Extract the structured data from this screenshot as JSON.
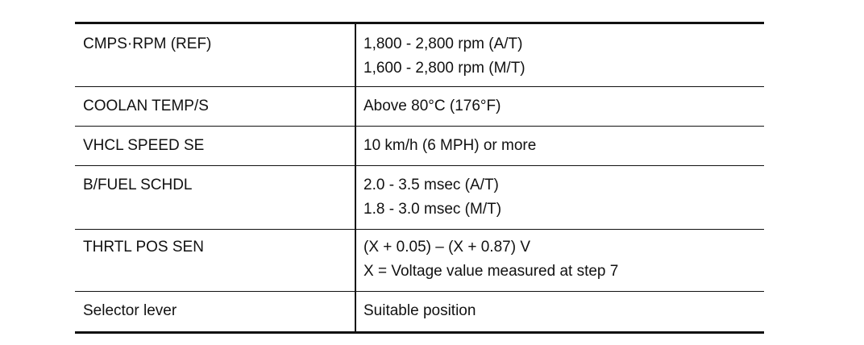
{
  "table": {
    "rows": [
      [
        "CMPS·RPM (REF)",
        [
          "1,800 - 2,800 rpm (A/T)",
          "1,600 - 2,800 rpm (M/T)"
        ]
      ],
      [
        "COOLAN TEMP/S",
        [
          "Above 80°C (176°F)"
        ]
      ],
      [
        "VHCL SPEED SE",
        [
          "10 km/h (6 MPH) or more"
        ]
      ],
      [
        "B/FUEL SCHDL",
        [
          "2.0 - 3.5 msec (A/T)",
          "1.8 - 3.0 msec (M/T)"
        ]
      ],
      [
        "THRTL POS SEN",
        [
          "(X + 0.05) – (X + 0.87) V",
          "X = Voltage value measured at step 7"
        ]
      ],
      [
        "Selector lever",
        [
          "Suitable position"
        ]
      ]
    ]
  }
}
